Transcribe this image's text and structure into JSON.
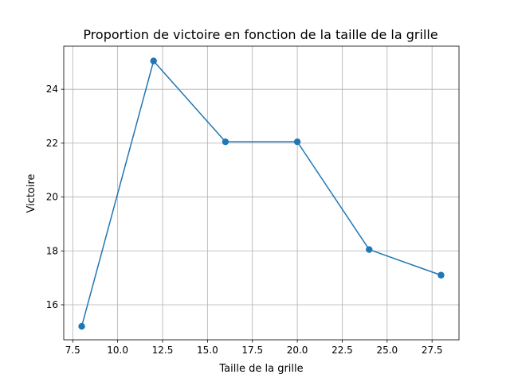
{
  "chart_data": {
    "type": "line",
    "title": "Proportion de victoire en fonction de la taille de la grille",
    "xlabel": "Taille de la grille",
    "ylabel": "Victoire",
    "x": [
      8,
      12,
      16,
      20,
      24,
      28
    ],
    "series": [
      {
        "values": [
          15.2,
          25.05,
          22.05,
          22.05,
          18.05,
          17.1
        ]
      }
    ],
    "xlim": [
      7.0,
      29.0
    ],
    "ylim": [
      14.7,
      25.6
    ],
    "xticks": [
      "7.5",
      "10.0",
      "12.5",
      "15.0",
      "17.5",
      "20.0",
      "22.5",
      "25.0",
      "27.5"
    ],
    "yticks": [
      "16",
      "18",
      "20",
      "22",
      "24"
    ],
    "grid": true,
    "line_color": "#1f77b4",
    "marker": "circle"
  }
}
